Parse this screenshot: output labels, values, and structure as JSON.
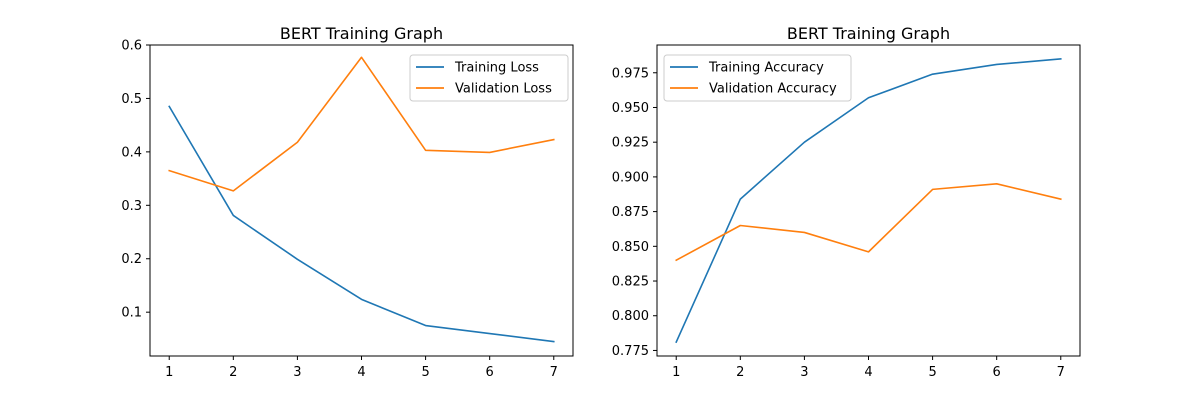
{
  "chart_data": [
    {
      "type": "line",
      "title": "BERT Training Graph",
      "xlabel": "",
      "ylabel": "",
      "x": [
        1,
        2,
        3,
        4,
        5,
        6,
        7
      ],
      "xlim": [
        0.7,
        7.3
      ],
      "ylim": [
        0.018,
        0.6
      ],
      "xticks": [
        1,
        2,
        3,
        4,
        5,
        6,
        7
      ],
      "yticks": [
        0.1,
        0.2,
        0.3,
        0.4,
        0.5,
        0.6
      ],
      "ytick_labels": [
        "0.1",
        "0.2",
        "0.3",
        "0.4",
        "0.5",
        "0.6"
      ],
      "grid": false,
      "legend_position": "top-right",
      "series": [
        {
          "name": "Training Loss",
          "color": "#1f77b4",
          "values": [
            0.485,
            0.281,
            0.199,
            0.124,
            0.075,
            0.06,
            0.045
          ]
        },
        {
          "name": "Validation Loss",
          "color": "#ff7f0e",
          "values": [
            0.365,
            0.327,
            0.418,
            0.577,
            0.403,
            0.399,
            0.423
          ]
        }
      ]
    },
    {
      "type": "line",
      "title": "BERT Training Graph",
      "xlabel": "",
      "ylabel": "",
      "x": [
        1,
        2,
        3,
        4,
        5,
        6,
        7
      ],
      "xlim": [
        0.7,
        7.3
      ],
      "ylim": [
        0.771,
        0.995
      ],
      "xticks": [
        1,
        2,
        3,
        4,
        5,
        6,
        7
      ],
      "yticks": [
        0.775,
        0.8,
        0.825,
        0.85,
        0.875,
        0.9,
        0.925,
        0.95,
        0.975
      ],
      "ytick_labels": [
        "0.775",
        "0.800",
        "0.825",
        "0.850",
        "0.875",
        "0.900",
        "0.925",
        "0.950",
        "0.975"
      ],
      "grid": false,
      "legend_position": "top-left",
      "series": [
        {
          "name": "Training Accuracy",
          "color": "#1f77b4",
          "values": [
            0.781,
            0.884,
            0.925,
            0.957,
            0.974,
            0.981,
            0.985
          ]
        },
        {
          "name": "Validation Accuracy",
          "color": "#ff7f0e",
          "values": [
            0.84,
            0.865,
            0.86,
            0.846,
            0.891,
            0.895,
            0.884
          ]
        }
      ]
    }
  ]
}
